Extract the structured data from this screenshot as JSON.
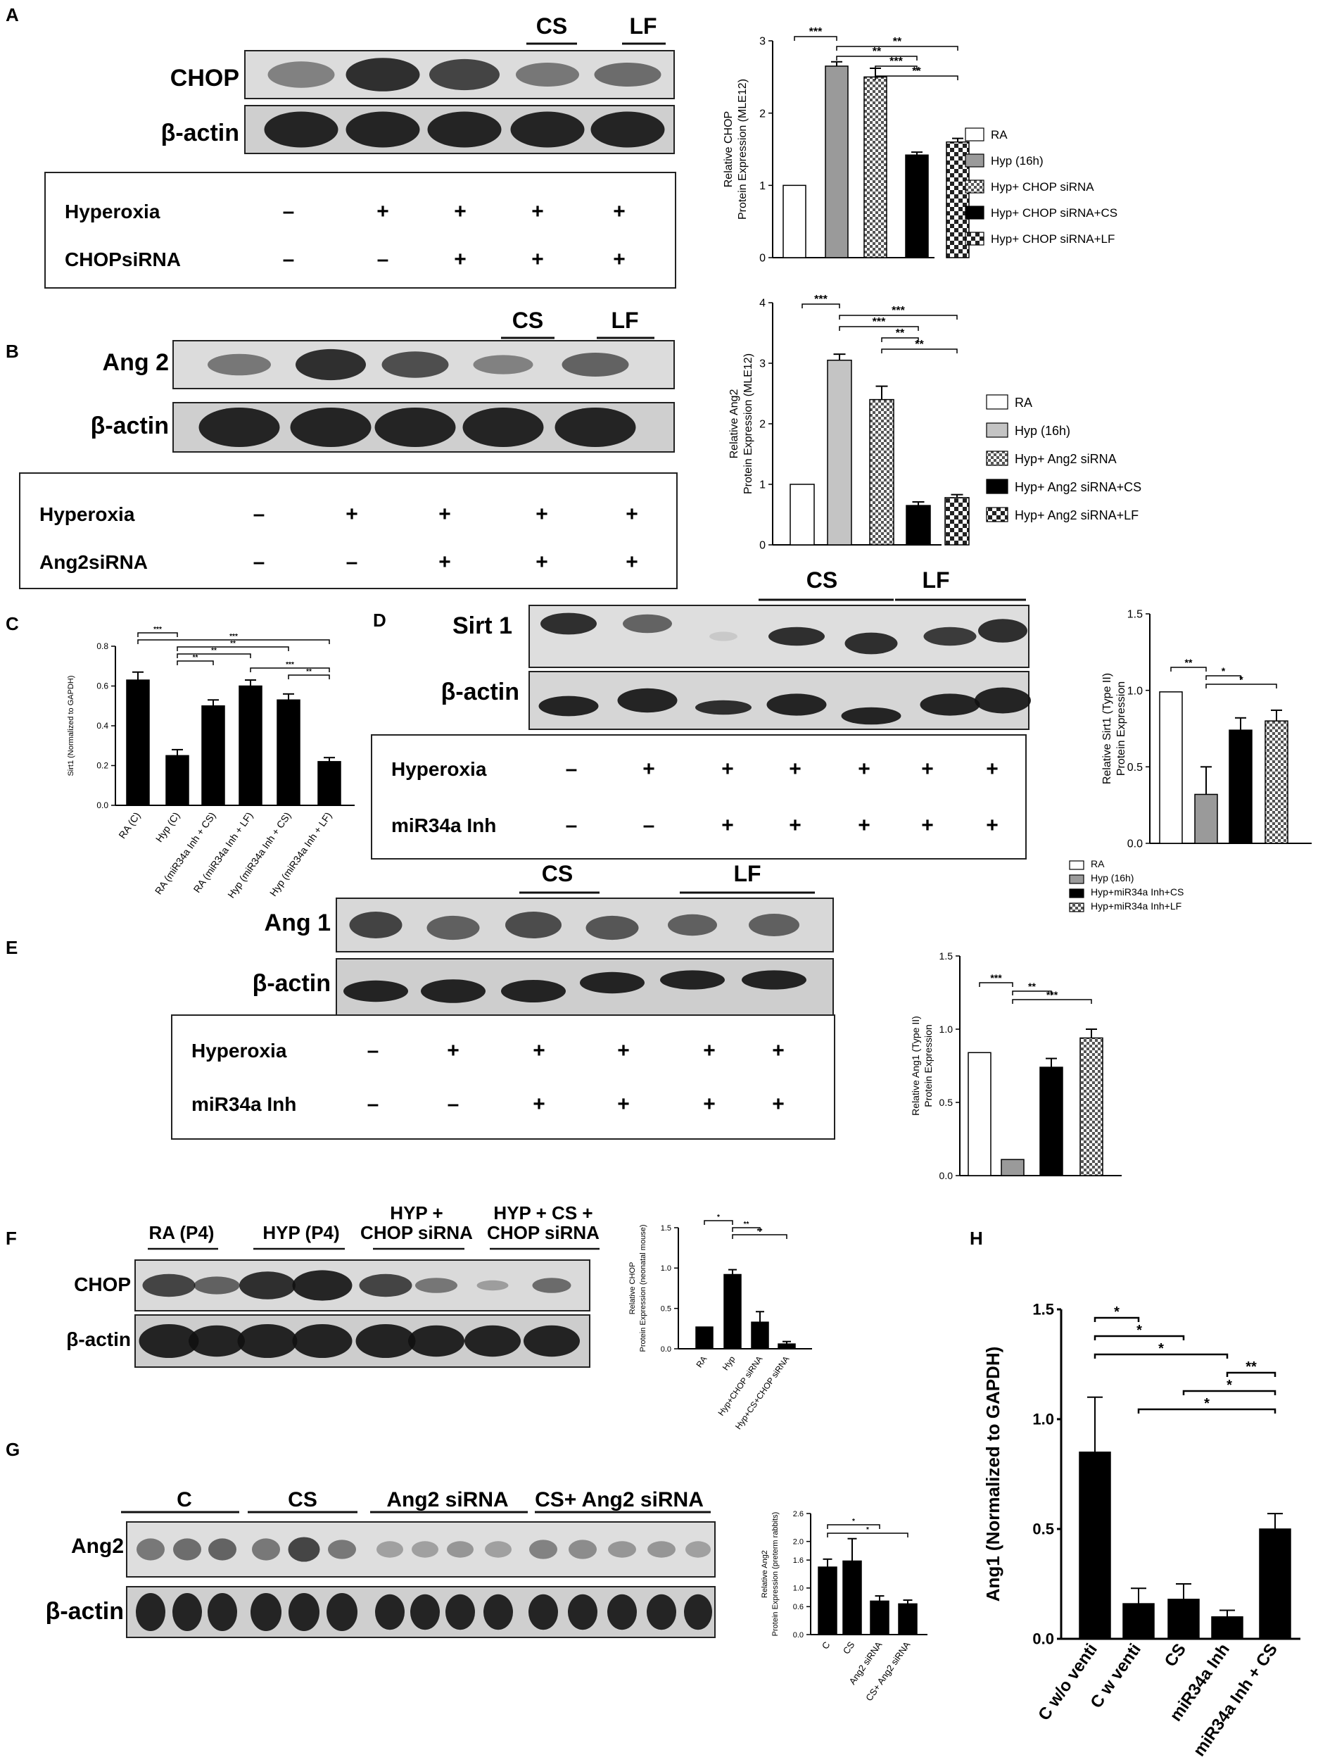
{
  "figure": {
    "panel_labels": [
      "A",
      "B",
      "C",
      "D",
      "E",
      "F",
      "G",
      "H"
    ]
  },
  "panels": {
    "A": {
      "band_labels": [
        "CHOP",
        "β-actin"
      ],
      "group_labels": [
        "CS",
        "LF"
      ],
      "treatments": [
        {
          "name": "Hyperoxia",
          "marks": [
            "–",
            "+",
            "+",
            "+",
            "+"
          ]
        },
        {
          "name": "CHOPsiRNA",
          "marks": [
            "–",
            "–",
            "+",
            "+",
            "+"
          ]
        }
      ]
    },
    "B": {
      "band_labels": [
        "Ang 2",
        "β-actin"
      ],
      "group_labels": [
        "CS",
        "LF"
      ],
      "treatments": [
        {
          "name": "Hyperoxia",
          "marks": [
            "–",
            "+",
            "+",
            "+",
            "+"
          ]
        },
        {
          "name": "Ang2siRNA",
          "marks": [
            "–",
            "–",
            "+",
            "+",
            "+"
          ]
        }
      ]
    },
    "D": {
      "band_labels": [
        "Sirt 1",
        "β-actin"
      ],
      "group_labels": [
        "CS",
        "LF"
      ],
      "treatments": [
        {
          "name": "Hyperoxia",
          "marks": [
            "–",
            "+",
            "+",
            "+",
            "+",
            "+",
            "+"
          ]
        },
        {
          "name": "miR34a  Inh",
          "marks": [
            "–",
            "–",
            "+",
            "+",
            "+",
            "+",
            "+"
          ]
        }
      ]
    },
    "E": {
      "band_labels": [
        "Ang 1",
        "β-actin"
      ],
      "group_labels": [
        "CS",
        "LF"
      ],
      "treatments": [
        {
          "name": "Hyperoxia",
          "marks": [
            "–",
            "+",
            "+",
            "+",
            "+",
            "+"
          ]
        },
        {
          "name": "miR34a  Inh",
          "marks": [
            "–",
            "–",
            "+",
            "+",
            "+",
            "+"
          ]
        }
      ]
    },
    "F": {
      "band_labels": [
        "CHOP",
        "β-actin"
      ],
      "group_labels": [
        "RA (P4)",
        "HYP (P4)",
        "HYP +\nCHOP siRNA",
        "HYP + CS +\nCHOP siRNA"
      ]
    },
    "G": {
      "band_labels": [
        "Ang2",
        "β-actin"
      ],
      "group_labels": [
        "C",
        "CS",
        "Ang2 siRNA",
        "CS+ Ang2 siRNA"
      ]
    }
  },
  "chart_data": [
    {
      "panel": "A",
      "type": "bar",
      "ylabel": "Relative CHOP\nProtein Expression (MLE12)",
      "ylim": [
        0,
        3
      ],
      "yticks": [
        0,
        1,
        2,
        3
      ],
      "categories": [
        "RA",
        "Hyp (16h)",
        "Hyp+ CHOP siRNA",
        "Hyp+ CHOP siRNA+CS",
        "Hyp+ CHOP siRNA+LF"
      ],
      "values": [
        1.0,
        2.65,
        2.5,
        1.42,
        1.6
      ],
      "errors": [
        0,
        0.06,
        0.12,
        0.04,
        0.05
      ],
      "fills": [
        "white",
        "gray",
        "checker",
        "black",
        "checker2"
      ],
      "legend": [
        "RA",
        "Hyp (16h)",
        "Hyp+ CHOP siRNA",
        "Hyp+ CHOP siRNA+CS",
        "Hyp+ CHOP siRNA+LF"
      ],
      "sig": [
        {
          "from": 0,
          "to": 1,
          "label": "***"
        },
        {
          "from": 1,
          "to": 4,
          "label": "**"
        },
        {
          "from": 1,
          "to": 3,
          "label": "**"
        },
        {
          "from": 2,
          "to": 3,
          "label": "***"
        },
        {
          "from": 2,
          "to": 4,
          "label": "**"
        }
      ]
    },
    {
      "panel": "B",
      "type": "bar",
      "ylabel": "Relative Ang2\nProtein Expression (MLE12)",
      "ylim": [
        0,
        4
      ],
      "yticks": [
        0,
        1,
        2,
        3,
        4
      ],
      "categories": [
        "RA",
        "Hyp (16h)",
        "Hyp+ Ang2 siRNA",
        "Hyp+ Ang2 siRNA+CS",
        "Hyp+ Ang2 siRNA+LF"
      ],
      "values": [
        1.0,
        3.05,
        2.4,
        0.65,
        0.78
      ],
      "errors": [
        0,
        0.1,
        0.22,
        0.06,
        0.05
      ],
      "fills": [
        "white",
        "lightgray",
        "checker",
        "black",
        "checker2"
      ],
      "legend": [
        "RA",
        "Hyp (16h)",
        "Hyp+ Ang2 siRNA",
        "Hyp+ Ang2 siRNA+CS",
        "Hyp+ Ang2 siRNA+LF"
      ],
      "sig": [
        {
          "from": 0,
          "to": 1,
          "label": "***"
        },
        {
          "from": 1,
          "to": 4,
          "label": "***"
        },
        {
          "from": 1,
          "to": 3,
          "label": "***"
        },
        {
          "from": 2,
          "to": 3,
          "label": "**"
        },
        {
          "from": 2,
          "to": 4,
          "label": "**"
        }
      ]
    },
    {
      "panel": "C",
      "type": "bar",
      "ylabel": "Sirt1 (Normalized to GAPDH)",
      "ylim": [
        0,
        0.8
      ],
      "yticks": [
        0.0,
        0.2,
        0.4,
        0.6,
        0.8
      ],
      "categories": [
        "RA (C)",
        "Hyp (C)",
        "RA (miR34a Inh + CS)",
        "RA (miR34a Inh + LF)",
        "Hyp (miR34a Inh + CS)",
        "Hyp (miR34a Inh + LF)"
      ],
      "values": [
        0.63,
        0.25,
        0.5,
        0.6,
        0.53,
        0.22
      ],
      "errors": [
        0.04,
        0.03,
        0.03,
        0.03,
        0.03,
        0.02
      ],
      "fills": [
        "black",
        "black",
        "black",
        "black",
        "black",
        "black"
      ],
      "sig": [
        {
          "from": 0,
          "to": 1,
          "label": "***"
        },
        {
          "from": 0,
          "to": 5,
          "label": "***"
        },
        {
          "from": 1,
          "to": 4,
          "label": "**"
        },
        {
          "from": 1,
          "to": 3,
          "label": "**"
        },
        {
          "from": 1,
          "to": 2,
          "label": "**"
        },
        {
          "from": 3,
          "to": 5,
          "label": "***"
        },
        {
          "from": 4,
          "to": 5,
          "label": "**"
        }
      ]
    },
    {
      "panel": "D",
      "type": "bar",
      "ylabel": "Relative Sirt1 (Type II)\nProtein Expression",
      "ylim": [
        0,
        1.5
      ],
      "yticks": [
        0.0,
        0.5,
        1.0,
        1.5
      ],
      "categories": [
        "RA",
        "Hyp (16h)",
        "Hyp+miR34a Inh+CS",
        "Hyp+miR34a Inh+LF"
      ],
      "values": [
        0.99,
        0.32,
        0.74,
        0.8
      ],
      "errors": [
        0,
        0.18,
        0.08,
        0.07
      ],
      "fills": [
        "white",
        "gray",
        "black",
        "checker"
      ],
      "sig": [
        {
          "from": 0,
          "to": 1,
          "label": "**"
        },
        {
          "from": 1,
          "to": 2,
          "label": "*"
        },
        {
          "from": 1,
          "to": 3,
          "label": "*"
        }
      ]
    },
    {
      "panel": "E",
      "type": "bar",
      "ylabel": "Relative Ang1 (Type II)\nProtein Expression",
      "ylim": [
        0,
        1.5
      ],
      "yticks": [
        0.0,
        0.5,
        1.0,
        1.5
      ],
      "categories": [
        "RA",
        "Hyp (16h)",
        "Hyp+miR34a Inh+CS",
        "Hyp+miR34a Inh+LF"
      ],
      "values": [
        0.84,
        0.11,
        0.74,
        0.94
      ],
      "errors": [
        0,
        0,
        0.06,
        0.06
      ],
      "fills": [
        "white",
        "gray",
        "black",
        "checker"
      ],
      "legend": [
        "RA",
        "Hyp (16h)",
        "Hyp+miR34a Inh+CS",
        "Hyp+miR34a Inh+LF"
      ],
      "sig": [
        {
          "from": 0,
          "to": 1,
          "label": "***"
        },
        {
          "from": 1,
          "to": 2,
          "label": "**"
        },
        {
          "from": 1,
          "to": 3,
          "label": "***"
        }
      ]
    },
    {
      "panel": "F",
      "type": "bar",
      "ylabel": "Relative CHOP\nProtein Expression (neonatal mouse)",
      "ylim": [
        0,
        1.5
      ],
      "yticks": [
        0.0,
        0.5,
        1.0,
        1.5
      ],
      "categories": [
        "RA",
        "Hyp",
        "Hyp+CHOP siRNA",
        "Hyp+CS+CHOP siRNA"
      ],
      "values": [
        0.27,
        0.92,
        0.33,
        0.06
      ],
      "errors": [
        0,
        0.06,
        0.13,
        0.03
      ],
      "fills": [
        "black",
        "black",
        "black",
        "black"
      ],
      "sig": [
        {
          "from": 0,
          "to": 1,
          "label": "*"
        },
        {
          "from": 1,
          "to": 2,
          "label": "**"
        },
        {
          "from": 1,
          "to": 3,
          "label": "**"
        }
      ]
    },
    {
      "panel": "G",
      "type": "bar",
      "ylabel": "Relative Ang2\nProtein Expression (preterm rabbits)",
      "ylim": [
        0,
        2.6
      ],
      "yticks": [
        0.0,
        0.6,
        1.0,
        1.6,
        2.0,
        2.6
      ],
      "categories": [
        "C",
        "CS",
        "Ang2 siRNA",
        "CS+ Ang2 siRNA"
      ],
      "values": [
        1.45,
        1.58,
        0.72,
        0.66
      ],
      "errors": [
        0.17,
        0.48,
        0.11,
        0.08
      ],
      "fills": [
        "black",
        "black",
        "black",
        "black"
      ],
      "sig": [
        {
          "from": 0,
          "to": 2,
          "label": "*"
        },
        {
          "from": 0,
          "to": 3,
          "label": "*"
        }
      ]
    },
    {
      "panel": "H",
      "type": "bar",
      "ylabel": "Ang1 (Normalized to GAPDH)",
      "ylim": [
        0,
        1.5
      ],
      "yticks": [
        0.0,
        0.5,
        1.0,
        1.5
      ],
      "categories": [
        "C w/o venti",
        "C  w venti",
        "CS",
        "miR34a Inh",
        "miR34a Inh + CS"
      ],
      "values": [
        0.85,
        0.16,
        0.18,
        0.1,
        0.5
      ],
      "errors": [
        0.25,
        0.07,
        0.07,
        0.03,
        0.07
      ],
      "fills": [
        "black",
        "black",
        "black",
        "black",
        "black"
      ],
      "sig": [
        {
          "from": 0,
          "to": 1,
          "label": "*"
        },
        {
          "from": 0,
          "to": 2,
          "label": "*"
        },
        {
          "from": 0,
          "to": 3,
          "label": "*"
        },
        {
          "from": 3,
          "to": 4,
          "label": "**"
        },
        {
          "from": 2,
          "to": 4,
          "label": "*"
        },
        {
          "from": 1,
          "to": 4,
          "label": "*"
        }
      ]
    }
  ]
}
